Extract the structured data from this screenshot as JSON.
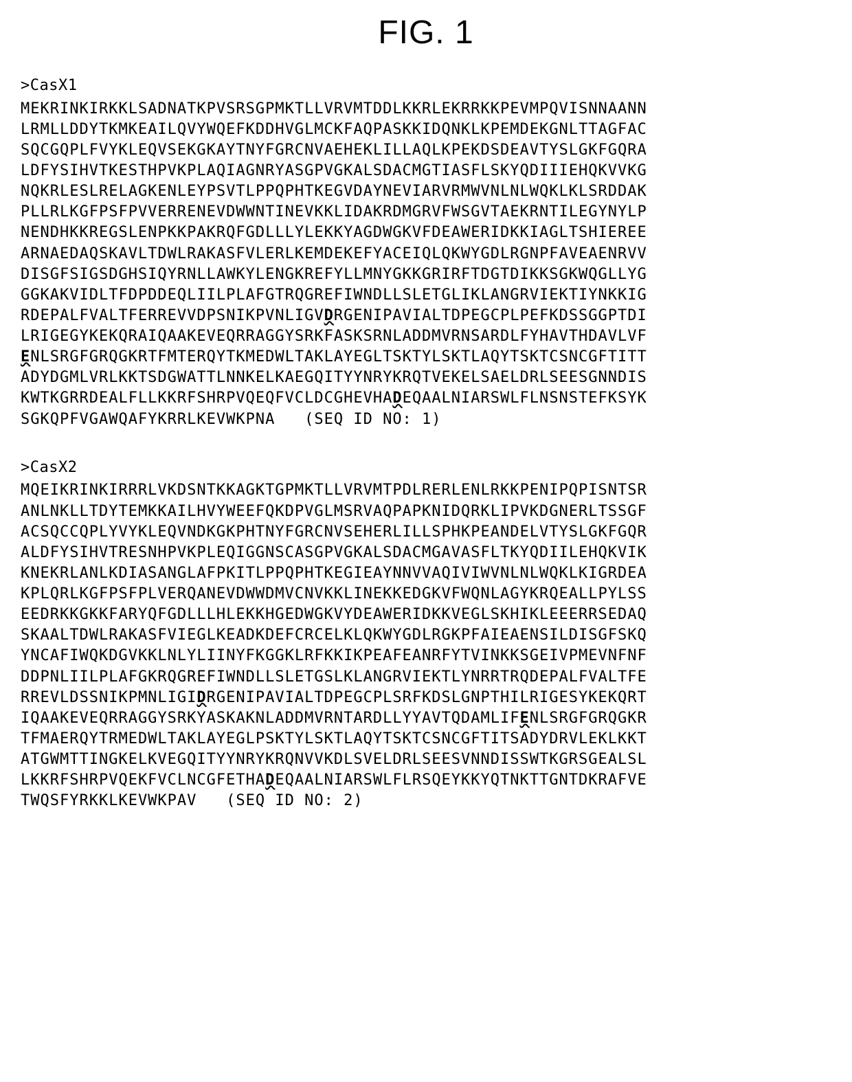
{
  "figure": {
    "title": "FIG. 1",
    "title_fontsize": 48,
    "title_fontfamily": "Arial, Helvetica, sans-serif"
  },
  "typography": {
    "body_fontsize": 22,
    "body_fontfamily": "Courier New, monospace",
    "letter_spacing": 1,
    "line_height": 1.37
  },
  "colors": {
    "background": "#ffffff",
    "text": "#000000"
  },
  "sequences": [
    {
      "header": ">CasX1",
      "seq_id_label": "(SEQ ID NO: 1)",
      "lines": [
        {
          "segments": [
            {
              "text": "MEKRINKIRKKLSADNATKPVSRSGPMKTLLVRVMTDDLKKRLEKRRKKPEVMPQVISNNAANN"
            }
          ]
        },
        {
          "segments": [
            {
              "text": "LRMLLDDYTKMKEAILQVYWQEFKDDHVGLMCKFAQPASKKIDQNKLKPEMDEKGNLTTAGFAC"
            }
          ]
        },
        {
          "segments": [
            {
              "text": "SQCGQPLFVYKLEQVSEKGKAYTNYFGRCNVAEHEKLILLAQLKPEKDSDEAVTYSLGKFGQRA"
            }
          ]
        },
        {
          "segments": [
            {
              "text": "LDFYSIHVTKESTHPVKPLAQIAGNRYASGPVGKALSDACMGTIASFLSKYQDIIIEHQKVVKG"
            }
          ]
        },
        {
          "segments": [
            {
              "text": "NQKRLESLRELAGKENLEYPSVTLPPQPHTKEGVDAYNEVIARVRMWVNLNLWQKLKLSRDDAK"
            }
          ]
        },
        {
          "segments": [
            {
              "text": "PLLRLKGFPSFPVVERRENEVDWWNTINEVKKLIDAKRDMGRVFWSGVTAEKRNTILEGYNYLP"
            }
          ]
        },
        {
          "segments": [
            {
              "text": "NENDHKKREGSLENPKKPAKRQFGDLLLYLEKKYAGDWGKVFDEAWERIDKKIAGLTSHIEREE"
            }
          ]
        },
        {
          "segments": [
            {
              "text": "ARNAEDAQSKAVLTDWLRAKASFVLERLKEMDEKEFYACEIQLQKWYGDLRGNPFAVEAENRVV"
            }
          ]
        },
        {
          "segments": [
            {
              "text": "DISGFSIGSDGHSIQYRNLLAWKYLENGKREFYLLMNYGKKGRIRFTDGTDIKKSGKWQGLLYG"
            }
          ]
        },
        {
          "segments": [
            {
              "text": "GGKAKVIDLTFDPDDEQLIILPLAFGTRQGREFIWNDLLSLETGLIKLANGRVIEKTIYNKKIG"
            }
          ]
        },
        {
          "segments": [
            {
              "text": "RDEPALFVALTFERREVVDPSNIKPVNLIGV"
            },
            {
              "text": "D",
              "emphasis": true
            },
            {
              "text": "RGENIPAVIALTDPEGCPLPEFKDSSGGPTDI"
            }
          ]
        },
        {
          "segments": [
            {
              "text": "LRIGEGYKEKQRAIQAAKEVEQRRAGGYSRKFASKSRNLADDMVRNSARDLFYHAVTHDAVLVF"
            }
          ]
        },
        {
          "segments": [
            {
              "text": "E",
              "emphasis": true
            },
            {
              "text": "NLSRGFGRQGKRTFMTERQYTKMEDWLTAKLAYEGLTSKTYLSKTLAQYTSKTCSNCGFTITT"
            }
          ]
        },
        {
          "segments": [
            {
              "text": "ADYDGMLVRLKKTSDGWATTLNNKELKAEGQITYYNRYKRQTVEKELSAELDRLSEESGNNDIS"
            }
          ]
        },
        {
          "segments": [
            {
              "text": "KWTKGRRDEALFLLKKRFSHRPVQEQFVCLDCGHEVHA"
            },
            {
              "text": "D",
              "emphasis": true
            },
            {
              "text": "EQAALNIARSWLFLNSNSTEFKSYK"
            }
          ]
        },
        {
          "segments": [
            {
              "text": "SGKQPFVGAWQAFYKRRLKEVWKPNA   "
            },
            {
              "text": "(SEQ ID NO: 1)",
              "seq_id": true
            }
          ]
        }
      ]
    },
    {
      "header": ">CasX2",
      "seq_id_label": "(SEQ ID NO: 2)",
      "lines": [
        {
          "segments": [
            {
              "text": "MQEIKRINKIRRRLVKDSNTKKAGKTGPMKTLLVRVMTPDLRERLENLRKKPENIPQPISNTSR"
            }
          ]
        },
        {
          "segments": [
            {
              "text": "ANLNKLLTDYTEMKKAILHVYWEEFQKDPVGLMSRVAQPAPKNIDQRKLIPVKDGNERLTSSGF"
            }
          ]
        },
        {
          "segments": [
            {
              "text": "ACSQCCQPLYVYKLEQVNDKGKPHTNYFGRCNVSEHERLILLSPHKPEANDELVTYSLGKFGQR"
            }
          ]
        },
        {
          "segments": [
            {
              "text": "ALDFYSIHVTRESNHPVKPLEQIGGNSCASGPVGKALSDACMGAVASFLTKYQDIILEHQKVIK"
            }
          ]
        },
        {
          "segments": [
            {
              "text": "KNEKRLANLKDIASANGLAFPKITLPPQPHTKEGIEAYNNVVAQIVIWVNLNLWQKLKIGRDEA"
            }
          ]
        },
        {
          "segments": [
            {
              "text": "KPLQRLKGFPSFPLVERQANEVDWWDMVCNVKKLINEKKEDGKVFWQNLAGYKRQEALLPYLSS"
            }
          ]
        },
        {
          "segments": [
            {
              "text": "EEDRKKGKKFARYQFGDLLLHLEKKHGEDWGKVYDEAWERIDKKVEGLSKHIKLEEERRSEDAQ"
            }
          ]
        },
        {
          "segments": [
            {
              "text": "SKAALTDWLRAKASFVIEGLKEADKDEFCRCELKLQKWYGDLRGKPFAIEAENSILDISGFSKQ"
            }
          ]
        },
        {
          "segments": [
            {
              "text": "YNCAFIWQKDGVKKLNLYLIINYFKGGKLRFKKIKPEAFEANRFYTVINKKSGEIVPMEVNFNF"
            }
          ]
        },
        {
          "segments": [
            {
              "text": "DDPNLIILPLAFGKRQGREFIWNDLLSLETGSLKLANGRVIEKTLYNRRTRQDEPALFVALTFE"
            }
          ]
        },
        {
          "segments": [
            {
              "text": "RREVLDSSNIKPMNLIGI"
            },
            {
              "text": "D",
              "emphasis": true
            },
            {
              "text": "RGENIPAVIALTDPEGCPLSRFKDSLGNPTHILRIGESYKEKQRT"
            }
          ]
        },
        {
          "segments": [
            {
              "text": "IQAAKEVEQRRAGGYSRKYASKAKNLADDMVRNTARDLLYYAVTQDAMLIF"
            },
            {
              "text": "E",
              "emphasis": true
            },
            {
              "text": "NLSRGFGRQGKR"
            }
          ]
        },
        {
          "segments": [
            {
              "text": "TFMAERQYTRMEDWLTAKLAYEGLPSKTYLSKTLAQYTSKTCSNCGFTITSADYDRVLEKLKKT"
            }
          ]
        },
        {
          "segments": [
            {
              "text": "ATGWMTTINGKELKVEGQITYYNRYKRQNVVKDLSVELDRLSEESVNNDISSWTKGRSGEALSL"
            }
          ]
        },
        {
          "segments": [
            {
              "text": "LKKRFSHRPVQEKFVCLNCGFETHA"
            },
            {
              "text": "D",
              "emphasis": true
            },
            {
              "text": "EQAALNIARSWLFLRSQEYKKYQTNKTTGNTDKRAFVE"
            }
          ]
        },
        {
          "segments": [
            {
              "text": "TWQSFYRKKLKEVWKPAV   "
            },
            {
              "text": "(SEQ ID NO: 2)",
              "seq_id": true
            }
          ]
        }
      ]
    }
  ]
}
